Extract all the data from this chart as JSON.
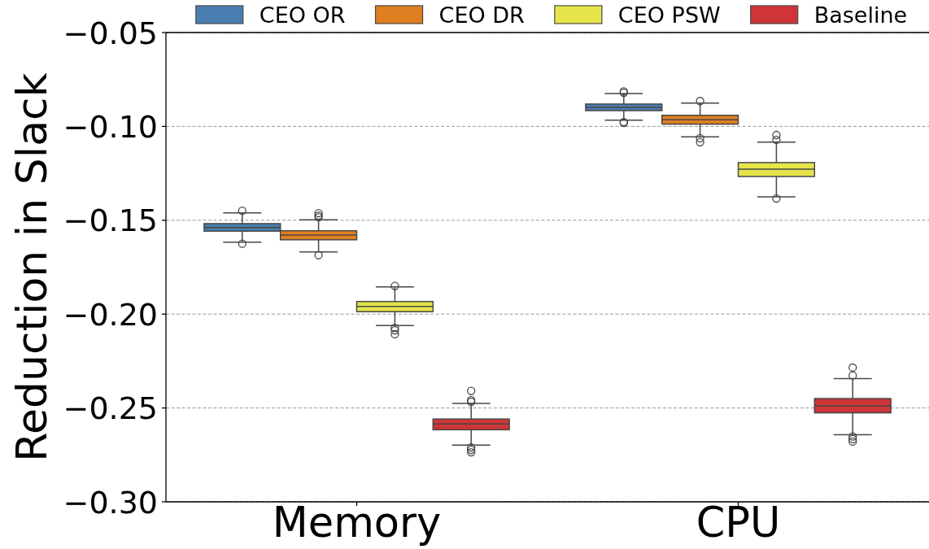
{
  "chart_data": {
    "type": "box",
    "ylabel": "Reduction in Slack",
    "categories": [
      "Memory",
      "CPU"
    ],
    "series": [
      {
        "name": "CEO OR",
        "color": "#4a7eb0",
        "boxes": [
          {
            "low": -0.1617,
            "q1": -0.1558,
            "median": -0.1539,
            "q3": -0.1518,
            "high": -0.1461,
            "outliers": [
              -0.1449,
              -0.1625
            ]
          },
          {
            "low": -0.0967,
            "q1": -0.0916,
            "median": -0.0899,
            "q3": -0.0881,
            "high": -0.0825,
            "outliers": [
              -0.0814,
              -0.0821,
              -0.0977,
              -0.0981
            ]
          }
        ]
      },
      {
        "name": "CEO DR",
        "color": "#e07f21",
        "boxes": [
          {
            "low": -0.1669,
            "q1": -0.1604,
            "median": -0.1579,
            "q3": -0.1556,
            "high": -0.1498,
            "outliers": [
              -0.1462,
              -0.1475,
              -0.1484,
              -0.1686
            ]
          },
          {
            "low": -0.1056,
            "q1": -0.0988,
            "median": -0.0965,
            "q3": -0.0941,
            "high": -0.0876,
            "outliers": [
              -0.0865,
              -0.1063,
              -0.1084
            ]
          }
        ]
      },
      {
        "name": "CEO PSW",
        "color": "#e5e54b",
        "boxes": [
          {
            "low": -0.2061,
            "q1": -0.1987,
            "median": -0.1959,
            "q3": -0.1933,
            "high": -0.1855,
            "outliers": [
              -0.185,
              -0.2073,
              -0.2086,
              -0.2107
            ]
          },
          {
            "low": -0.1375,
            "q1": -0.1267,
            "median": -0.1228,
            "q3": -0.1193,
            "high": -0.1084,
            "outliers": [
              -0.1046,
              -0.1071,
              -0.1384
            ]
          }
        ]
      },
      {
        "name": "Baseline",
        "color": "#cf3537",
        "boxes": [
          {
            "low": -0.2698,
            "q1": -0.2616,
            "median": -0.2585,
            "q3": -0.2559,
            "high": -0.2476,
            "outliers": [
              -0.2409,
              -0.2458,
              -0.2467,
              -0.271,
              -0.2723,
              -0.2736
            ]
          },
          {
            "low": -0.2643,
            "q1": -0.2526,
            "median": -0.2489,
            "q3": -0.245,
            "high": -0.2344,
            "outliers": [
              -0.2285,
              -0.2327,
              -0.2652,
              -0.2666,
              -0.2679
            ]
          }
        ]
      }
    ],
    "ylim": [
      -0.3,
      -0.05
    ],
    "yticks": [
      {
        "value": -0.3,
        "label": "−0.30"
      },
      {
        "value": -0.25,
        "label": "−0.25"
      },
      {
        "value": -0.2,
        "label": "−0.20"
      },
      {
        "value": -0.15,
        "label": "−0.15"
      },
      {
        "value": -0.1,
        "label": "−0.10"
      },
      {
        "value": -0.05,
        "label": "−0.05"
      }
    ],
    "grid": "y",
    "legend": "top"
  }
}
